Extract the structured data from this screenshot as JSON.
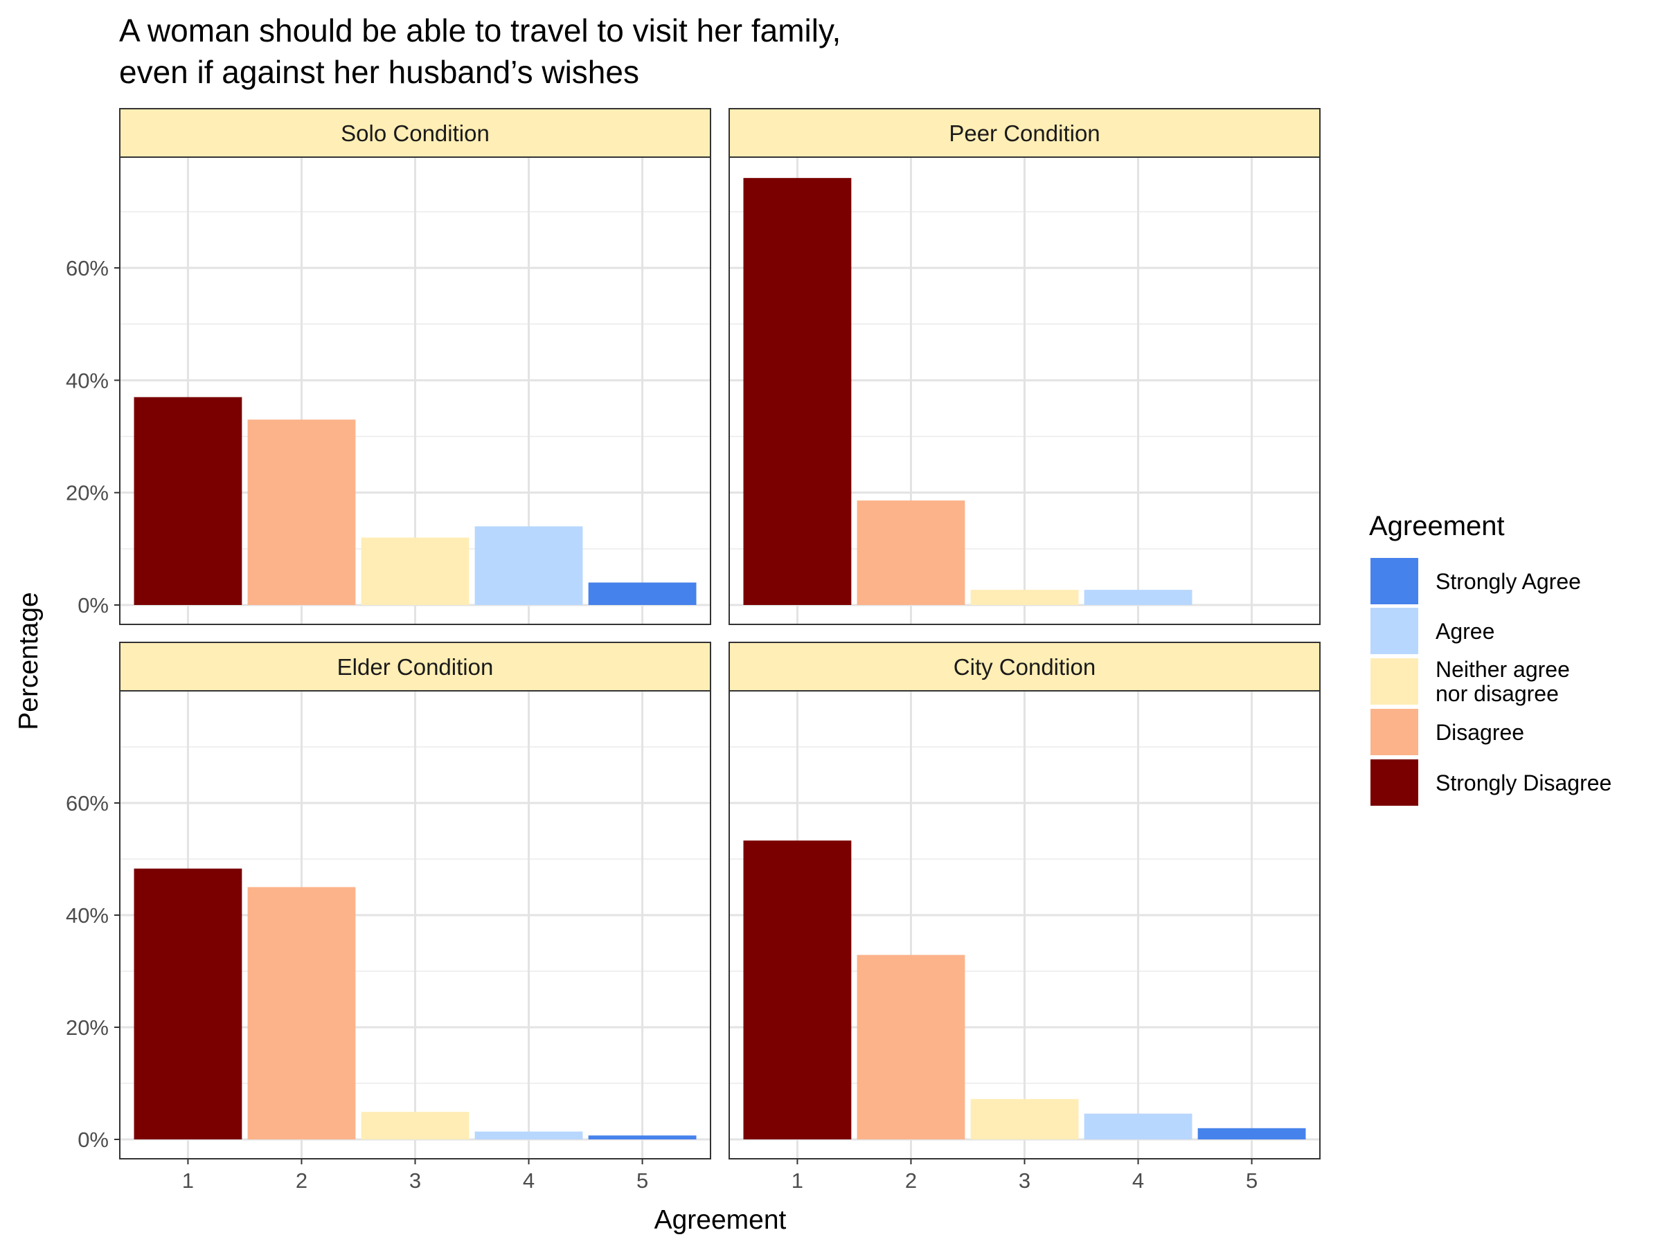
{
  "chart_data": {
    "type": "bar",
    "title_line1": "A woman should be able to travel to visit her family,",
    "title_line2": " even if against her husband’s wishes",
    "xlabel": "Agreement",
    "ylabel": "Percentage",
    "x": [
      1,
      2,
      3,
      4,
      5
    ],
    "ylim": [
      0,
      80
    ],
    "yticks": [
      "0%",
      "20%",
      "40%",
      "60%"
    ],
    "ytick_values": [
      0,
      20,
      40,
      60
    ],
    "grid": true,
    "legend_position": "right",
    "legend": {
      "title": "Agreement",
      "items": [
        {
          "label": "Strongly Agree",
          "color": "#4682eb"
        },
        {
          "label": "Agree",
          "color": "#b8d7ff"
        },
        {
          "label": "Neither agree",
          "label2": "nor disagree",
          "color": "#ffedb5"
        },
        {
          "label": "Disagree",
          "color": "#fcb38a"
        },
        {
          "label": "Strongly Disagree",
          "color": "#7a0000"
        }
      ]
    },
    "bar_colors": [
      "#7a0000",
      "#fcb38a",
      "#ffedb5",
      "#b8d7ff",
      "#4682eb"
    ],
    "strip_color": "#ffeeb5",
    "panels": [
      {
        "name": "Solo Condition",
        "values": [
          37.0,
          33.0,
          12.0,
          14.0,
          4.0
        ]
      },
      {
        "name": "Peer Condition",
        "values": [
          76.0,
          18.6,
          2.7,
          2.7,
          0.0
        ]
      },
      {
        "name": "Elder Condition",
        "values": [
          48.3,
          45.0,
          4.9,
          1.4,
          0.7
        ]
      },
      {
        "name": "City Condition",
        "values": [
          53.3,
          32.9,
          7.2,
          4.6,
          2.0
        ]
      }
    ]
  }
}
